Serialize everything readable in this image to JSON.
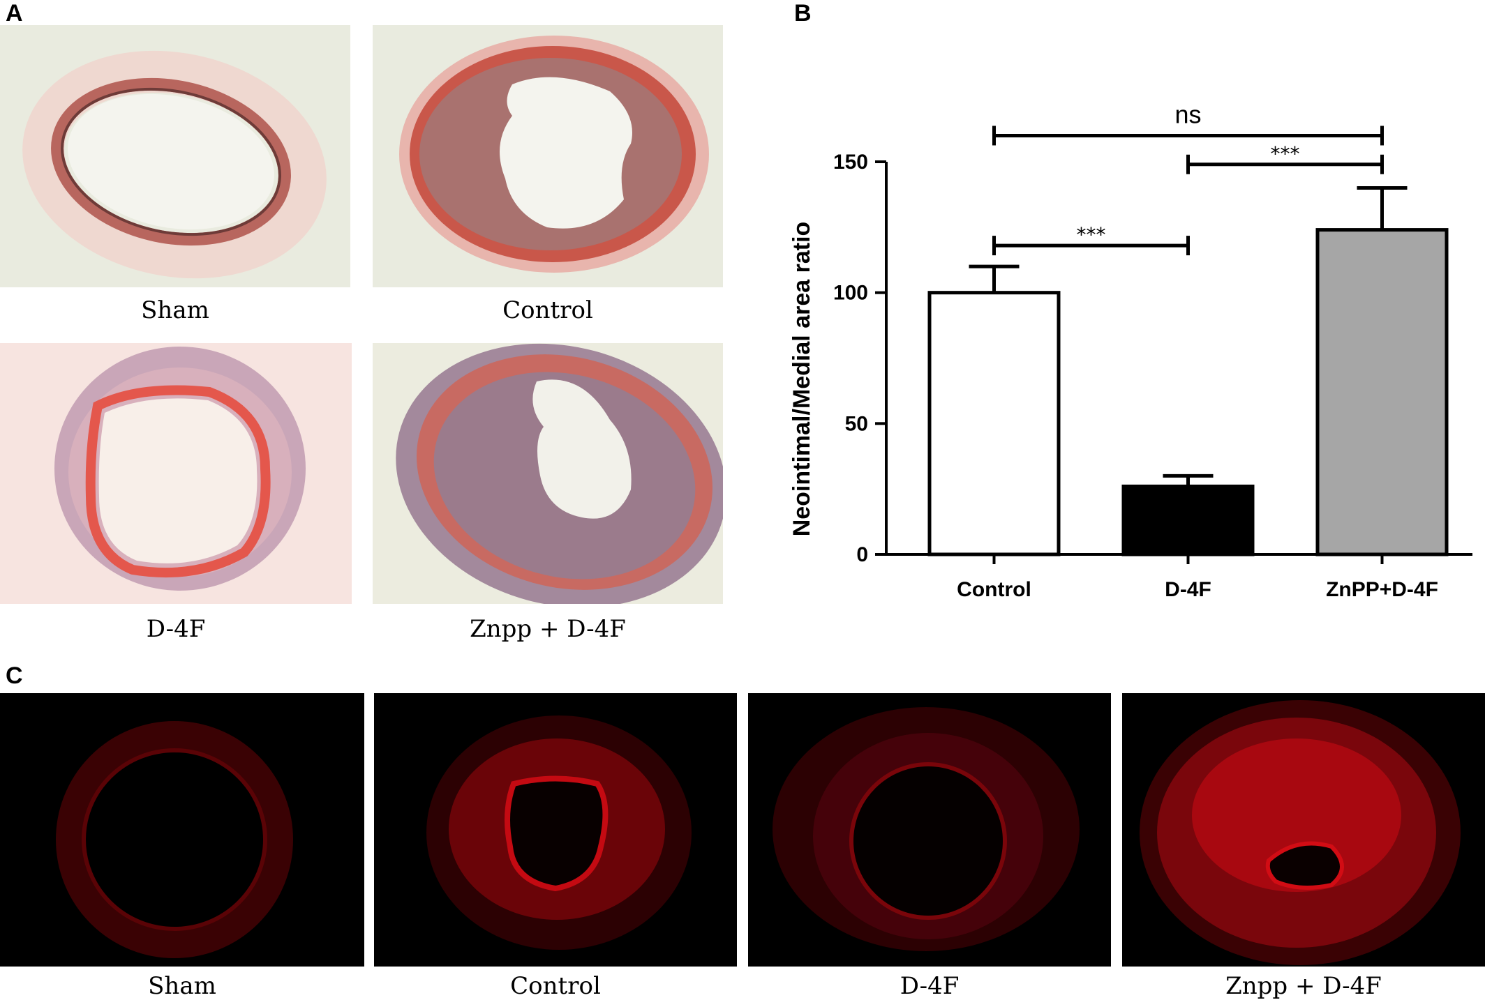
{
  "panels": {
    "a": {
      "letter": "A",
      "images": [
        {
          "caption": "Sham"
        },
        {
          "caption": "Control"
        },
        {
          "caption": "D-4F"
        },
        {
          "caption": "Znpp + D-4F"
        }
      ]
    },
    "b": {
      "letter": "B"
    },
    "c": {
      "letter": "C",
      "images": [
        {
          "caption": "Sham"
        },
        {
          "caption": "Control"
        },
        {
          "caption": "D-4F"
        },
        {
          "caption": "Znpp + D-4F"
        }
      ]
    }
  },
  "chart_data": {
    "type": "bar",
    "categories": [
      "Control",
      "D-4F",
      "ZnPP+D-4F"
    ],
    "values": [
      100,
      26,
      124
    ],
    "errors": [
      10,
      4,
      16
    ],
    "bar_colors": [
      "#ffffff",
      "#000000",
      "#a6a6a6"
    ],
    "ylabel": "Neointimal/Medial area ratio",
    "ylim": [
      0,
      150
    ],
    "yticks": [
      0,
      50,
      100,
      150
    ],
    "grid": false,
    "significance": [
      {
        "from": 0,
        "to": 1,
        "label": "***",
        "y": 118
      },
      {
        "from": 1,
        "to": 2,
        "label": "***",
        "y": 149
      },
      {
        "from": 0,
        "to": 2,
        "label": "ns",
        "y": 160
      }
    ]
  }
}
